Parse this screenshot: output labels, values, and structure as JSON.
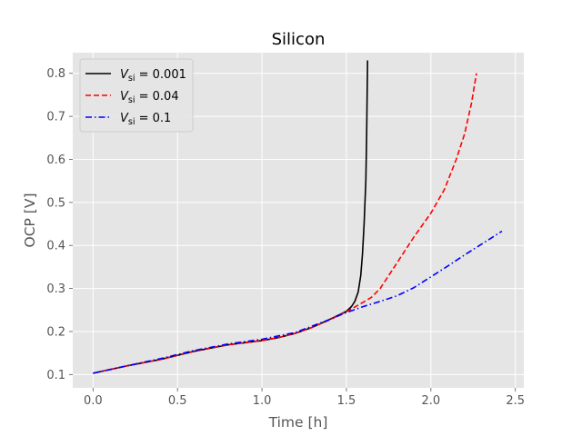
{
  "chart_data": {
    "type": "line",
    "title": "Silicon",
    "xlabel": "Time [h]",
    "ylabel": "OCP [V]",
    "xlim": [
      -0.12,
      2.55
    ],
    "ylim": [
      0.069,
      0.848
    ],
    "xticks": [
      0.0,
      0.5,
      1.0,
      1.5,
      2.0,
      2.5
    ],
    "xtick_labels": [
      "0.0",
      "0.5",
      "1.0",
      "1.5",
      "2.0",
      "2.5"
    ],
    "yticks": [
      0.1,
      0.2,
      0.3,
      0.4,
      0.5,
      0.6,
      0.7,
      0.8
    ],
    "ytick_labels": [
      "0.1",
      "0.2",
      "0.3",
      "0.4",
      "0.5",
      "0.6",
      "0.7",
      "0.8"
    ],
    "grid": true,
    "legend_position": "top-left",
    "background": "#e5e5e5",
    "series": [
      {
        "name": "V_si = 0.001",
        "legend": {
          "symbol": "V",
          "sub": "si",
          "value": " = 0.001"
        },
        "color": "#000000",
        "dash": "solid",
        "x": [
          0.0,
          0.2,
          0.4,
          0.6,
          0.8,
          1.0,
          1.1,
          1.2,
          1.3,
          1.4,
          1.5,
          1.53,
          1.55,
          1.57,
          1.585,
          1.595,
          1.605,
          1.615,
          1.62,
          1.625
        ],
        "y": [
          0.103,
          0.12,
          0.135,
          0.154,
          0.169,
          0.179,
          0.186,
          0.196,
          0.21,
          0.228,
          0.247,
          0.258,
          0.27,
          0.292,
          0.33,
          0.38,
          0.45,
          0.55,
          0.66,
          0.83
        ]
      },
      {
        "name": "V_si = 0.04",
        "legend": {
          "symbol": "V",
          "sub": "si",
          "value": " = 0.04"
        },
        "color": "#ff0000",
        "dash": "dashed",
        "x": [
          0.0,
          0.2,
          0.4,
          0.6,
          0.8,
          1.0,
          1.1,
          1.2,
          1.3,
          1.4,
          1.5,
          1.6,
          1.65,
          1.7,
          1.8,
          1.9,
          2.0,
          2.08,
          2.15,
          2.2,
          2.24,
          2.27
        ],
        "y": [
          0.103,
          0.12,
          0.135,
          0.155,
          0.169,
          0.179,
          0.186,
          0.196,
          0.21,
          0.227,
          0.246,
          0.268,
          0.28,
          0.3,
          0.36,
          0.42,
          0.475,
          0.53,
          0.6,
          0.66,
          0.73,
          0.8
        ]
      },
      {
        "name": "V_si = 0.1",
        "legend": {
          "symbol": "V",
          "sub": "si",
          "value": " = 0.1"
        },
        "color": "#0000ff",
        "dash": "dashdot",
        "x": [
          0.0,
          0.2,
          0.4,
          0.6,
          0.8,
          1.0,
          1.2,
          1.4,
          1.5,
          1.6,
          1.7,
          1.8,
          1.9,
          2.0,
          2.1,
          2.2,
          2.3,
          2.42
        ],
        "y": [
          0.103,
          0.12,
          0.137,
          0.156,
          0.171,
          0.182,
          0.198,
          0.228,
          0.244,
          0.258,
          0.27,
          0.283,
          0.302,
          0.327,
          0.352,
          0.378,
          0.403,
          0.433
        ]
      }
    ]
  }
}
